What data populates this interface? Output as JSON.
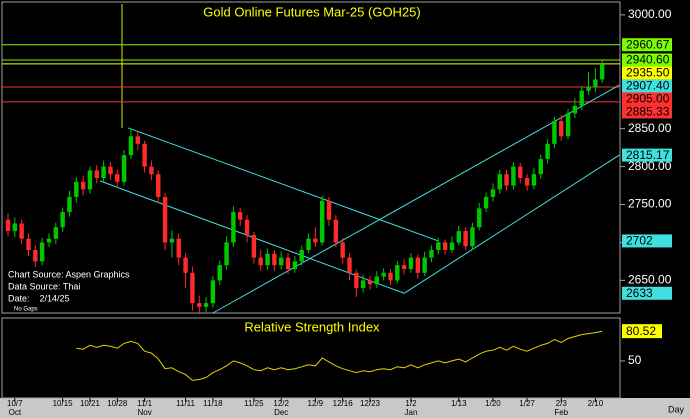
{
  "chart_data": {
    "type": "candlestick",
    "title": "Gold Online Futures Mar-25 (GOH25)",
    "categories": [
      null,
      "10/7",
      null,
      null,
      null,
      null,
      null,
      null,
      "10/15",
      null,
      null,
      null,
      "10/21",
      null,
      null,
      null,
      "10/28",
      null,
      null,
      null,
      "11/1",
      null,
      null,
      null,
      null,
      null,
      "11/11",
      null,
      null,
      null,
      "11/18",
      null,
      null,
      null,
      null,
      null,
      "11/25",
      null,
      null,
      null,
      "12/2",
      null,
      null,
      null,
      null,
      "12/9",
      null,
      null,
      null,
      "12/16",
      null,
      null,
      null,
      "12/23",
      null,
      null,
      null,
      null,
      null,
      "1/2",
      null,
      null,
      null,
      null,
      null,
      null,
      "1/13",
      null,
      null,
      null,
      null,
      "1/20",
      null,
      null,
      null,
      null,
      "1/27",
      null,
      null,
      null,
      null,
      "2/3",
      null,
      null,
      null,
      null,
      "2/10",
      null
    ],
    "month_categories": [
      null,
      "Oct",
      null,
      null,
      null,
      null,
      null,
      null,
      null,
      null,
      null,
      null,
      null,
      null,
      null,
      null,
      null,
      null,
      null,
      null,
      "Nov",
      null,
      null,
      null,
      null,
      null,
      null,
      null,
      null,
      null,
      null,
      null,
      null,
      null,
      null,
      null,
      null,
      null,
      null,
      null,
      "Dec",
      null,
      null,
      null,
      null,
      null,
      null,
      null,
      null,
      null,
      null,
      null,
      null,
      null,
      null,
      null,
      null,
      null,
      null,
      "Jan",
      null,
      null,
      null,
      null,
      null,
      null,
      null,
      null,
      null,
      null,
      null,
      null,
      null,
      null,
      null,
      null,
      null,
      null,
      null,
      null,
      null,
      "Feb",
      null,
      null,
      null,
      null,
      null,
      null
    ],
    "open": [
      2730,
      2715,
      2725,
      2705,
      2690,
      2675,
      2700,
      2705,
      2720,
      2740,
      2760,
      2780,
      2770,
      2795,
      2785,
      2800,
      2790,
      2780,
      2815,
      2840,
      2830,
      2800,
      2790,
      2760,
      2700,
      2705,
      2680,
      2660,
      2620,
      2615,
      2620,
      2650,
      2670,
      2700,
      2740,
      2730,
      2710,
      2680,
      2670,
      2685,
      2670,
      2680,
      2665,
      2675,
      2690,
      2705,
      2700,
      2755,
      2730,
      2700,
      2680,
      2660,
      2640,
      2650,
      2645,
      2655,
      2660,
      2650,
      2670,
      2665,
      2680,
      2660,
      2680,
      2690,
      2700,
      2690,
      2700,
      2715,
      2695,
      2720,
      2745,
      2760,
      2770,
      2790,
      2775,
      2800,
      2785,
      2775,
      2790,
      2810,
      2830,
      2860,
      2840,
      2870,
      2880,
      2900,
      2905,
      2915
    ],
    "high": [
      2738,
      2733,
      2730,
      2712,
      2696,
      2706,
      2712,
      2726,
      2746,
      2768,
      2786,
      2788,
      2800,
      2802,
      2808,
      2806,
      2796,
      2822,
      2850,
      2846,
      2834,
      2808,
      2795,
      2765,
      2716,
      2712,
      2686,
      2668,
      2630,
      2628,
      2656,
      2676,
      2708,
      2748,
      2745,
      2736,
      2714,
      2690,
      2692,
      2690,
      2688,
      2686,
      2682,
      2696,
      2712,
      2720,
      2762,
      2760,
      2736,
      2706,
      2686,
      2664,
      2658,
      2656,
      2662,
      2666,
      2665,
      2676,
      2678,
      2686,
      2684,
      2688,
      2696,
      2706,
      2704,
      2708,
      2722,
      2720,
      2726,
      2752,
      2766,
      2778,
      2796,
      2796,
      2806,
      2805,
      2790,
      2798,
      2816,
      2836,
      2866,
      2868,
      2876,
      2890,
      2906,
      2925,
      2930,
      2940
    ],
    "low": [
      2708,
      2707,
      2698,
      2682,
      2668,
      2670,
      2694,
      2698,
      2714,
      2734,
      2752,
      2762,
      2764,
      2778,
      2779,
      2782,
      2772,
      2775,
      2810,
      2822,
      2792,
      2782,
      2752,
      2690,
      2680,
      2670,
      2640,
      2610,
      2605,
      2608,
      2614,
      2644,
      2664,
      2694,
      2722,
      2700,
      2672,
      2662,
      2664,
      2662,
      2664,
      2658,
      2660,
      2670,
      2686,
      2694,
      2696,
      2722,
      2694,
      2672,
      2650,
      2628,
      2634,
      2638,
      2640,
      2650,
      2644,
      2646,
      2658,
      2660,
      2652,
      2656,
      2674,
      2684,
      2684,
      2686,
      2696,
      2690,
      2690,
      2716,
      2740,
      2754,
      2764,
      2768,
      2770,
      2778,
      2768,
      2770,
      2784,
      2804,
      2824,
      2834,
      2836,
      2864,
      2874,
      2894,
      2898,
      2910
    ],
    "close": [
      2715,
      2725,
      2705,
      2690,
      2675,
      2700,
      2705,
      2720,
      2740,
      2760,
      2780,
      2770,
      2795,
      2785,
      2800,
      2790,
      2780,
      2815,
      2840,
      2830,
      2800,
      2790,
      2760,
      2700,
      2705,
      2680,
      2660,
      2620,
      2615,
      2620,
      2650,
      2670,
      2700,
      2740,
      2730,
      2710,
      2680,
      2670,
      2685,
      2670,
      2680,
      2665,
      2675,
      2690,
      2705,
      2700,
      2755,
      2730,
      2700,
      2680,
      2660,
      2640,
      2650,
      2645,
      2655,
      2660,
      2650,
      2670,
      2665,
      2680,
      2660,
      2680,
      2690,
      2700,
      2690,
      2700,
      2715,
      2695,
      2720,
      2745,
      2760,
      2770,
      2790,
      2775,
      2800,
      2785,
      2775,
      2790,
      2810,
      2830,
      2860,
      2840,
      2870,
      2880,
      2900,
      2905,
      2915,
      2935
    ],
    "up_color": "#00c800",
    "down_color": "#ff2a2a",
    "ylim": [
      2607,
      3017
    ],
    "yticks": [
      {
        "value": 3000,
        "label": "3000.00"
      },
      {
        "value": 2850,
        "label": "2850.00"
      },
      {
        "value": 2800,
        "label": "2800.00"
      },
      {
        "value": 2750,
        "label": "2750.00"
      },
      {
        "value": 2700,
        "label": "2700.00"
      },
      {
        "value": 2650,
        "label": "2650.00"
      }
    ],
    "levels": [
      {
        "value": 2960.67,
        "color": "#7cfc00"
      },
      {
        "value": 2940.6,
        "label": "2940.60",
        "color": "#7cfc00"
      },
      {
        "value": 2935.5,
        "label": "2935.50",
        "color": "#ffff00"
      },
      {
        "value": 2905,
        "label": "2905.00",
        "color": "#ff3030"
      },
      {
        "value": 2885.33,
        "color": "#ff3030"
      }
    ],
    "trendlines": [
      {
        "x": [
          17.6,
          63
        ],
        "y": [
          2851,
          2702
        ],
        "color": "#40e0e0"
      },
      {
        "x": [
          13.5,
          58
        ],
        "y": [
          2781,
          2633
        ],
        "color": "#40e0e0"
      },
      {
        "x": [
          30,
          89.5
        ],
        "y": [
          2607,
          2907.4
        ],
        "end_label": "2907.40",
        "color": "#40e0e0"
      },
      {
        "x": [
          58,
          89.5
        ],
        "y": [
          2633,
          2815.17
        ],
        "color": "#40e0e0"
      }
    ],
    "annotations": [
      "Chart Source: Aspen Graphics",
      "Data Source: Thai",
      "Date:    2/14/25",
      "No Gaps"
    ],
    "x_unit_label": "Day",
    "rsi": {
      "title": "Relative Strength Index",
      "color": "#e6d200",
      "ylim": [
        12,
        94
      ],
      "yticks": [
        50
      ],
      "values": [
        null,
        null,
        null,
        null,
        null,
        null,
        null,
        null,
        null,
        null,
        63,
        62,
        66,
        64,
        66,
        65,
        63,
        68,
        70,
        68,
        60,
        58,
        52,
        42,
        43,
        39,
        36,
        30,
        31,
        33,
        38,
        41,
        45,
        50,
        48,
        45,
        41,
        40,
        43,
        41,
        43,
        41,
        42,
        44,
        46,
        45,
        53,
        49,
        45,
        42,
        40,
        38,
        40,
        39,
        41,
        42,
        41,
        44,
        43,
        46,
        43,
        46,
        48,
        50,
        48,
        50,
        52,
        49,
        53,
        57,
        60,
        61,
        64,
        61,
        65,
        62,
        60,
        63,
        66,
        68,
        72,
        69,
        73,
        75,
        77,
        78,
        79,
        80.52
      ]
    }
  }
}
